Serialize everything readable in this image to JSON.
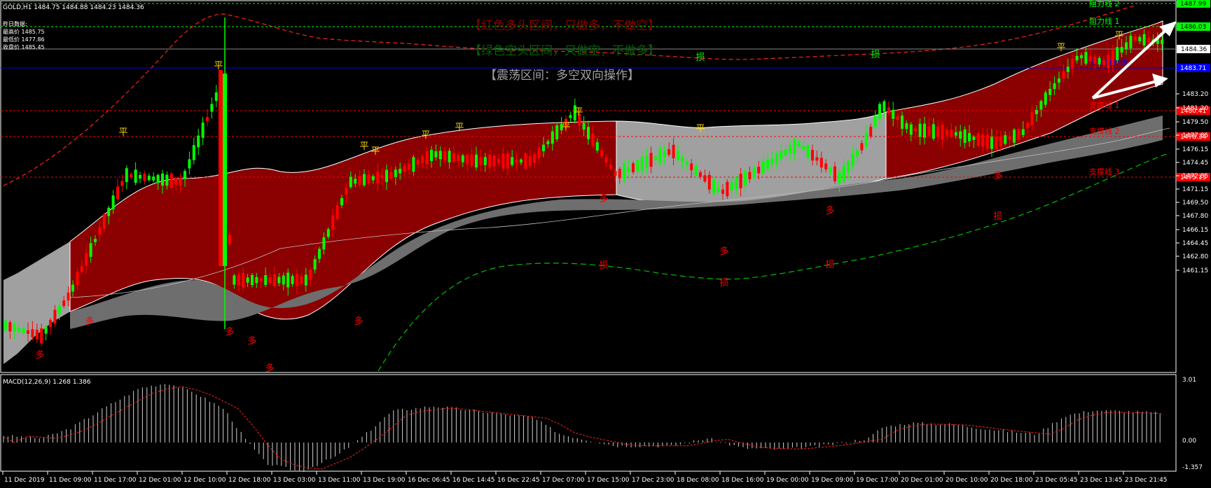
{
  "header": {
    "symbol_line": "GOLD,H1  1484.75 1484.88 1484.23 1484.36",
    "prev_day_label": "昨日数据:",
    "prev_high": "最高价 1485.75",
    "prev_low": "最低价 1477.86",
    "prev_close": "收盘价 1485.45"
  },
  "notes": {
    "bull": "【红色多头区间，只做多，不做空】",
    "bear": "【绿色空头区间，只做空，不做多】",
    "range": "【震荡区间：多空双向操作】"
  },
  "price_axis": {
    "ticks": [
      "1483.20",
      "1481.20",
      "1479.50",
      "1477.85",
      "1476.15",
      "1474.45",
      "1472.85",
      "1471.15",
      "1469.50",
      "1467.80",
      "1466.15",
      "1464.45",
      "1462.80",
      "1461.15"
    ],
    "current_price": "1484.36",
    "top_tag": "1487.99"
  },
  "levels": [
    {
      "label": "阻力线 2",
      "value": "1487.99",
      "color": "#00ff00"
    },
    {
      "label": "阻力线 1",
      "value": "1486.03",
      "color": "#00ff00"
    },
    {
      "label": "多空分界线",
      "value": "1483.71",
      "color": "#0000ff"
    },
    {
      "label": "支撑线 1",
      "value": "1480.41",
      "color": "#ff0000"
    },
    {
      "label": "支撑线 2",
      "value": "1478.34",
      "color": "#ff0000"
    },
    {
      "label": "支撑线 3",
      "value": "1475.13",
      "color": "#ff0000"
    }
  ],
  "macd": {
    "label": "MACD(12,26,9) 1.268 1.386",
    "axis": [
      "3.01",
      "0.00",
      "-1.357"
    ]
  },
  "time_axis": [
    "11 Dec 2019",
    "11 Dec 09:00",
    "11 Dec 17:00",
    "12 Dec 01:00",
    "12 Dec 10:00",
    "12 Dec 18:00",
    "13 Dec 03:00",
    "13 Dec 11:00",
    "13 Dec 19:00",
    "16 Dec 06:45",
    "16 Dec 14:45",
    "16 Dec 22:45",
    "17 Dec 07:00",
    "17 Dec 15:00",
    "17 Dec 23:00",
    "18 Dec 08:00",
    "18 Dec 16:00",
    "19 Dec 00:00",
    "19 Dec 09:00",
    "19 Dec 17:00",
    "20 Dec 01:00",
    "20 Dec 10:00",
    "20 Dec 18:00",
    "23 Dec 05:45",
    "23 Dec 13:45",
    "23 Dec 21:45"
  ],
  "markers": {
    "long": "多",
    "flat": "平",
    "switch": "损",
    "stop": "损"
  },
  "colors": {
    "bull_zone": "#8b0000",
    "range_zone": "#a0a0a0",
    "up_candle": "#00ff00",
    "down_candle": "#ff0000"
  }
}
